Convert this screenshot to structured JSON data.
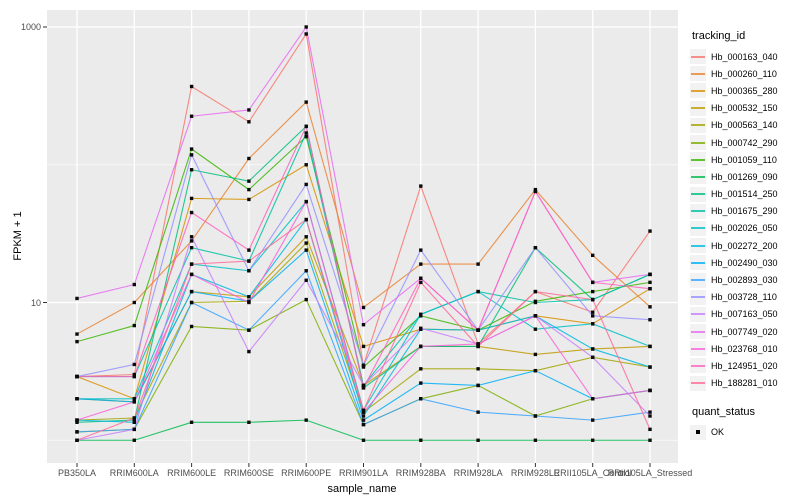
{
  "figure": {
    "panel_bg": "#EBEBEB",
    "grid_color": "#FFFFFF",
    "point_color": "#0a0a0a",
    "tick_color": "#333333",
    "tick_label_color": "#4d4d4d"
  },
  "axes": {
    "x_title": "sample_name",
    "y_title": "FPKM + 1",
    "y_tick_labels": [
      "1000",
      "10"
    ],
    "y_tick_values": [
      1000,
      10
    ]
  },
  "legend": {
    "tracking_title": "tracking_id",
    "quant_title": "quant_status",
    "quant_items": [
      {
        "label": "OK"
      }
    ]
  },
  "chart_data": {
    "type": "line",
    "xlabel": "sample_name",
    "ylabel": "FPKM + 1",
    "yscale": "log10",
    "ylim": [
      0.9,
      1100
    ],
    "grid": true,
    "legend_position": "right",
    "major_y_gridlines": [
      10,
      1000
    ],
    "minor_y_gridlines": [
      1,
      100
    ],
    "categories": [
      "PB350LA",
      "RRIM600LA",
      "RRIM600LE",
      "RRIM600SE",
      "RRIM600PE",
      "RRIM901LA",
      "RRIM928BA",
      "RRIM928LA",
      "RRIM928LE",
      "RRII105LA_Control",
      "RRII105LA_Stressed"
    ],
    "series": [
      {
        "name": "Hb_000163_040",
        "color": "#F8766D",
        "values": [
          2.9,
          3.0,
          370,
          205,
          890,
          3.5,
          70,
          5.0,
          12,
          8.5,
          33
        ]
      },
      {
        "name": "Hb_000260_110",
        "color": "#EA8331",
        "values": [
          5.9,
          10,
          28,
          111,
          285,
          9.2,
          19,
          19,
          66,
          22,
          9.3
        ]
      },
      {
        "name": "Hb_000365_280",
        "color": "#D89000",
        "values": [
          2.9,
          2.0,
          57,
          56,
          100,
          4.8,
          6.4,
          6.3,
          8.0,
          7.0,
          12.6
        ]
      },
      {
        "name": "Hb_000532_150",
        "color": "#C09B00",
        "values": [
          2.0,
          1.9,
          12,
          11,
          30,
          2.5,
          4.8,
          4.8,
          4.2,
          4.6,
          4.8
        ]
      },
      {
        "name": "Hb_000563_140",
        "color": "#A3A500",
        "values": [
          1.4,
          1.45,
          10,
          10.2,
          27,
          1.6,
          3.3,
          3.3,
          3.2,
          4.0,
          3.4
        ]
      },
      {
        "name": "Hb_000742_290",
        "color": "#7CAE00",
        "values": [
          1.15,
          1.2,
          6.7,
          6.3,
          10.5,
          1.3,
          2.0,
          2.5,
          1.5,
          2.0,
          2.3
        ]
      },
      {
        "name": "Hb_001059_110",
        "color": "#39B600",
        "values": [
          5.2,
          6.8,
          130,
          66,
          160,
          3.4,
          8.0,
          6.3,
          10.2,
          12,
          14
        ]
      },
      {
        "name": "Hb_001269_090",
        "color": "#00BB4E",
        "values": [
          1.0,
          1.0,
          1.35,
          1.35,
          1.4,
          1.0,
          1.0,
          1.0,
          1.0,
          1.0,
          1.0
        ]
      },
      {
        "name": "Hb_001514_250",
        "color": "#00BF7D",
        "values": [
          1.35,
          1.4,
          92,
          76,
          190,
          2.4,
          4.8,
          4.8,
          25,
          10.5,
          16
        ]
      },
      {
        "name": "Hb_001675_290",
        "color": "#00C1A3",
        "values": [
          2.9,
          2.9,
          25,
          20,
          170,
          2.5,
          8.2,
          12,
          10,
          10.5,
          16
        ]
      },
      {
        "name": "Hb_002026_050",
        "color": "#00BFC4",
        "values": [
          2.0,
          2.0,
          19,
          17,
          54,
          1.65,
          8.2,
          12,
          6.4,
          7.0,
          4.8
        ]
      },
      {
        "name": "Hb_002272_200",
        "color": "#00BAE0",
        "values": [
          1.4,
          1.35,
          16,
          11,
          40,
          1.5,
          6.4,
          6.3,
          8.0,
          4.6,
          3.4
        ]
      },
      {
        "name": "Hb_002490_030",
        "color": "#00B0F6",
        "values": [
          2.0,
          1.9,
          12,
          10.2,
          24,
          1.4,
          2.6,
          2.5,
          3.2,
          2.0,
          2.3
        ]
      },
      {
        "name": "Hb_002893_030",
        "color": "#35A2FF",
        "values": [
          1.15,
          1.2,
          10,
          6.3,
          17,
          1.3,
          2.0,
          1.6,
          1.5,
          1.4,
          1.6
        ]
      },
      {
        "name": "Hb_003728_110",
        "color": "#9590FF",
        "values": [
          2.9,
          3.55,
          118,
          17,
          72,
          3.5,
          24,
          6.3,
          25,
          8.0,
          7.5
        ]
      },
      {
        "name": "Hb_007163_050",
        "color": "#C77CFF",
        "values": [
          1.0,
          1.2,
          30,
          4.4,
          14.5,
          2.5,
          6.5,
          5.0,
          8.0,
          4.0,
          1.5
        ]
      },
      {
        "name": "Hb_007749_020",
        "color": "#E76BF3",
        "values": [
          10.7,
          13.5,
          225,
          250,
          1000,
          6.9,
          15,
          6.3,
          64,
          14,
          16
        ]
      },
      {
        "name": "Hb_023768_010",
        "color": "#FA62DB",
        "values": [
          1.4,
          1.9,
          16,
          10,
          54,
          1.6,
          4.8,
          5.0,
          8.0,
          2.0,
          2.3
        ]
      },
      {
        "name": "Hb_124951_020",
        "color": "#FF62BC",
        "values": [
          2.9,
          2.9,
          45,
          24,
          190,
          2.4,
          15,
          6.3,
          64,
          14,
          12.6
        ]
      },
      {
        "name": "Hb_188281_010",
        "color": "#FF6A98",
        "values": [
          1.0,
          1.45,
          19,
          20,
          40,
          1.65,
          14,
          4.8,
          12,
          10.5,
          1.2
        ]
      }
    ],
    "quant_status": {
      "label": "OK",
      "marker": "black-square"
    }
  }
}
